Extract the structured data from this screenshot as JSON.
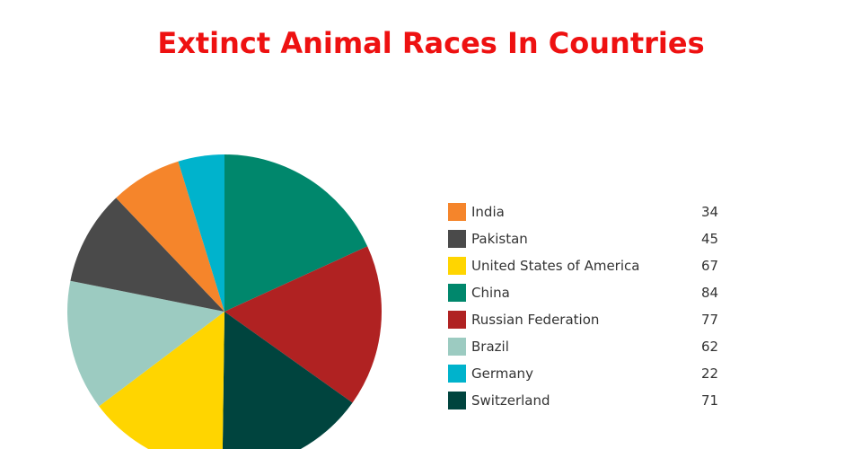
{
  "chart_data": {
    "type": "pie",
    "title": "Extinct Animal Races In Countries",
    "title_color": "#ee1111",
    "categories": [
      "India",
      "Pakistan",
      "United States of America",
      "China",
      "Russian Federation",
      "Brazil",
      "Germany",
      "Switzerland"
    ],
    "values": [
      34,
      45,
      67,
      84,
      77,
      62,
      22,
      71
    ],
    "colors": [
      "#f5852b",
      "#4a4a4a",
      "#ffd500",
      "#00876c",
      "#b02222",
      "#9ccbc1",
      "#00b3cc",
      "#00443e"
    ],
    "slice_order": [
      "China",
      "Russian Federation",
      "Switzerland",
      "United States of America",
      "Brazil",
      "Pakistan",
      "India",
      "Germany"
    ],
    "legend_position": "right"
  }
}
